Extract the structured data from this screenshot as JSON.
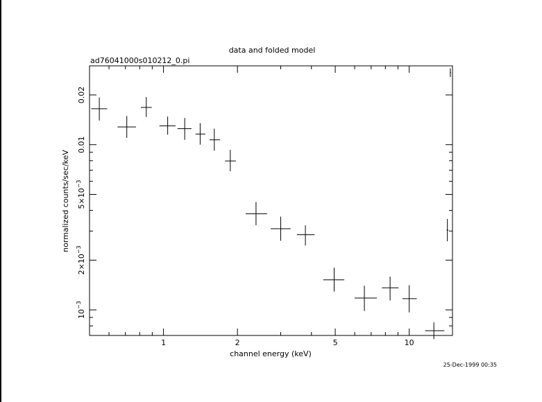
{
  "chart_data": {
    "type": "scatter",
    "title": "data and folded model",
    "subtitle": "ad76041000s010212_0.pi",
    "xlabel": "channel energy (keV)",
    "ylabel": "normalized counts/sec/keV",
    "timestamp": "25-Dec-1999 00:35",
    "x_scale": "log",
    "y_scale": "log",
    "xlim": [
      0.5,
      15.0
    ],
    "ylim": [
      0.0007,
      0.03
    ],
    "x_ticks": [
      {
        "value": 1,
        "label": "1"
      },
      {
        "value": 2,
        "label": "2"
      },
      {
        "value": 5,
        "label": "5"
      },
      {
        "value": 10,
        "label": "10"
      }
    ],
    "y_ticks": [
      {
        "value": 0.001,
        "base": "10",
        "exp": "−3"
      },
      {
        "value": 0.002,
        "base": "2×10",
        "exp": "−3"
      },
      {
        "value": 0.005,
        "base": "5×10",
        "exp": "−3"
      },
      {
        "value": 0.01,
        "label": "0.01"
      },
      {
        "value": 0.02,
        "label": "0.02"
      }
    ],
    "points": [
      {
        "x": 0.548,
        "y": 0.0165,
        "xerr": [
          0.508,
          0.59
        ],
        "yerr": [
          0.014,
          0.0193
        ]
      },
      {
        "x": 0.709,
        "y": 0.0128,
        "xerr": [
          0.65,
          0.773
        ],
        "yerr": [
          0.011,
          0.0149
        ]
      },
      {
        "x": 0.851,
        "y": 0.0168,
        "xerr": [
          0.809,
          0.896
        ],
        "yerr": [
          0.0147,
          0.0194
        ]
      },
      {
        "x": 1.04,
        "y": 0.013,
        "xerr": [
          0.962,
          1.12
        ],
        "yerr": [
          0.0115,
          0.0148
        ]
      },
      {
        "x": 1.22,
        "y": 0.0125,
        "xerr": [
          1.14,
          1.3
        ],
        "yerr": [
          0.0107,
          0.0145
        ]
      },
      {
        "x": 1.41,
        "y": 0.0116,
        "xerr": [
          1.35,
          1.48
        ],
        "yerr": [
          0.01,
          0.0135
        ]
      },
      {
        "x": 1.61,
        "y": 0.0107,
        "xerr": [
          1.54,
          1.7
        ],
        "yerr": [
          0.0092,
          0.0125
        ]
      },
      {
        "x": 1.87,
        "y": 0.00797,
        "xerr": [
          1.78,
          1.97
        ],
        "yerr": [
          0.0069,
          0.0093
        ]
      },
      {
        "x": 2.38,
        "y": 0.00382,
        "xerr": [
          2.16,
          2.64
        ],
        "yerr": [
          0.00325,
          0.0045
        ]
      },
      {
        "x": 3.0,
        "y": 0.0031,
        "xerr": [
          2.73,
          3.29
        ],
        "yerr": [
          0.00262,
          0.00367
        ]
      },
      {
        "x": 3.78,
        "y": 0.00285,
        "xerr": [
          3.49,
          4.12
        ],
        "yerr": [
          0.00245,
          0.00325
        ]
      },
      {
        "x": 4.95,
        "y": 0.00152,
        "xerr": [
          4.47,
          5.44
        ],
        "yerr": [
          0.00129,
          0.0018
        ]
      },
      {
        "x": 6.57,
        "y": 0.00118,
        "xerr": [
          5.99,
          7.39
        ],
        "yerr": [
          0.000985,
          0.0014
        ]
      },
      {
        "x": 8.36,
        "y": 0.00136,
        "xerr": [
          7.74,
          9.05
        ],
        "yerr": [
          0.00114,
          0.00159
        ]
      },
      {
        "x": 10.0,
        "y": 0.00117,
        "xerr": [
          9.39,
          10.73
        ],
        "yerr": [
          0.000965,
          0.00141
        ]
      },
      {
        "x": 12.6,
        "y": 0.000748,
        "xerr": [
          11.6,
          13.9
        ],
        "yerr": [
          0.000665,
          0.00084
        ]
      },
      {
        "x": 14.3,
        "y": 0.00304,
        "xerr": [
          14.2,
          14.45
        ],
        "yerr": [
          0.0026,
          0.00355
        ]
      },
      {
        "x": 14.7,
        "y": 0.0273,
        "xerr": [
          14.65,
          14.8
        ],
        "yerr": [
          0.0257,
          0.029
        ]
      }
    ]
  }
}
